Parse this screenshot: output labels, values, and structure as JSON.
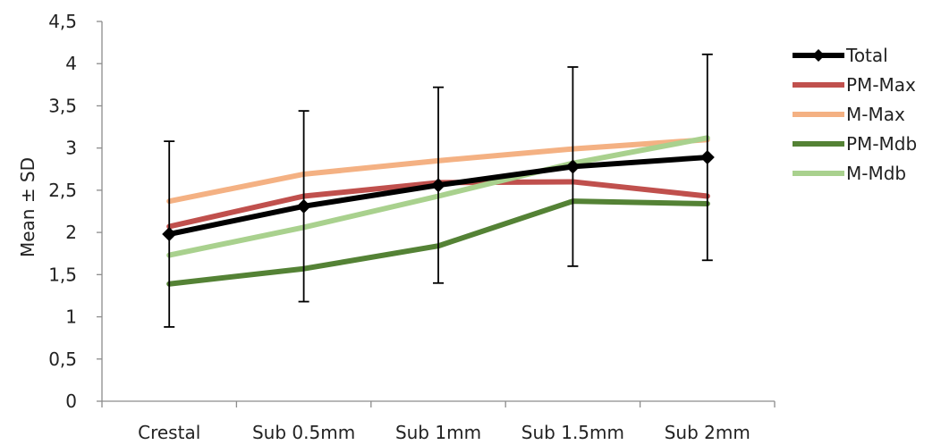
{
  "chart_data": {
    "type": "line",
    "title": "",
    "xlabel": "",
    "ylabel": "Mean ± SD",
    "categories": [
      "Crestal",
      "Sub 0.5mm",
      "Sub 1mm",
      "Sub 1.5mm",
      "Sub 2mm"
    ],
    "ylim": [
      0,
      4.5
    ],
    "yticks": [
      "0",
      "0,5",
      "1",
      "1,5",
      "2",
      "2,5",
      "3",
      "3,5",
      "4",
      "4,5"
    ],
    "grid": false,
    "legend_position": "right",
    "series": [
      {
        "name": "Total",
        "color": "#000000",
        "marker": "diamond",
        "values": [
          1.98,
          2.31,
          2.56,
          2.78,
          2.89
        ],
        "error": [
          1.1,
          1.13,
          1.16,
          1.18,
          1.22
        ]
      },
      {
        "name": "PM-Max",
        "color": "#c0504d",
        "values": [
          2.07,
          2.43,
          2.59,
          2.6,
          2.43
        ]
      },
      {
        "name": "M-Max",
        "color": "#f4b183",
        "values": [
          2.37,
          2.69,
          2.85,
          2.99,
          3.1
        ]
      },
      {
        "name": "PM-Mdb",
        "color": "#548235",
        "values": [
          1.39,
          1.57,
          1.84,
          2.37,
          2.34
        ]
      },
      {
        "name": "M-Mdb",
        "color": "#a9d18e",
        "values": [
          1.73,
          2.06,
          2.43,
          2.82,
          3.12
        ]
      }
    ]
  }
}
